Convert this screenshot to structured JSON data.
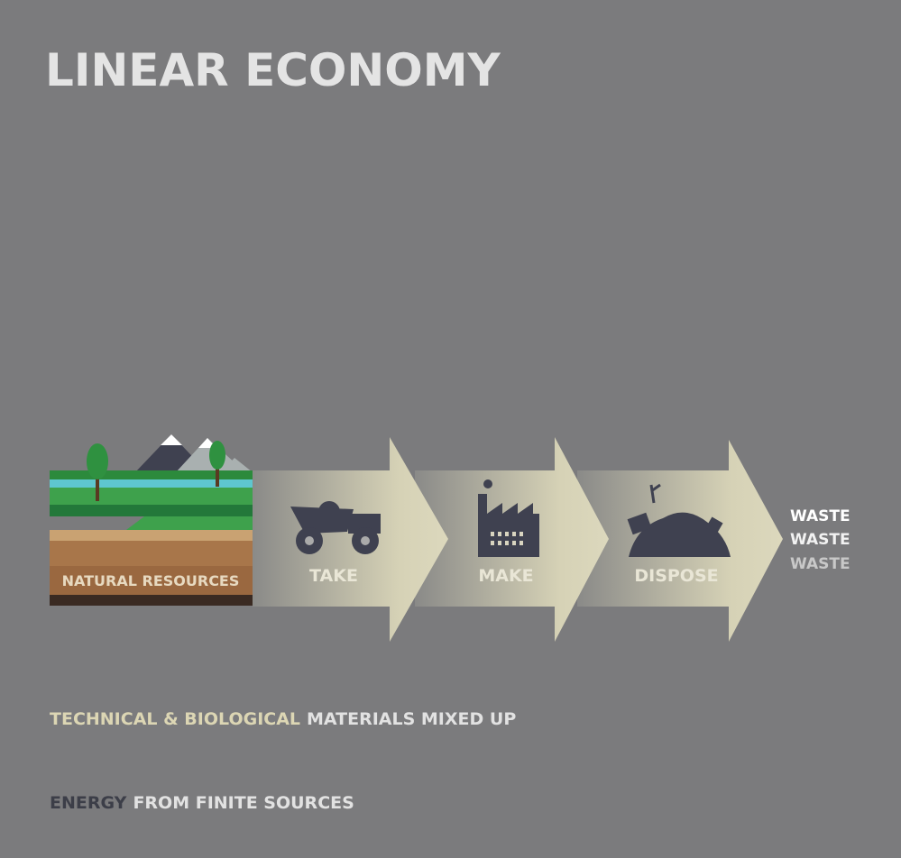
{
  "title": "LINEAR ECONOMY",
  "source": "NATURAL RESOURCES",
  "steps": [
    "TAKE",
    "MAKE",
    "DISPOSE"
  ],
  "outputs": [
    "WASTE",
    "WASTE",
    "WASTE"
  ],
  "notes": [
    {
      "parts": [
        "TECHNICAL & BIOLOGICAL",
        "MATERIALS MIXED UP"
      ]
    },
    {
      "parts": [
        "ENERGY",
        "FROM FINITE SOURCES"
      ]
    }
  ]
}
